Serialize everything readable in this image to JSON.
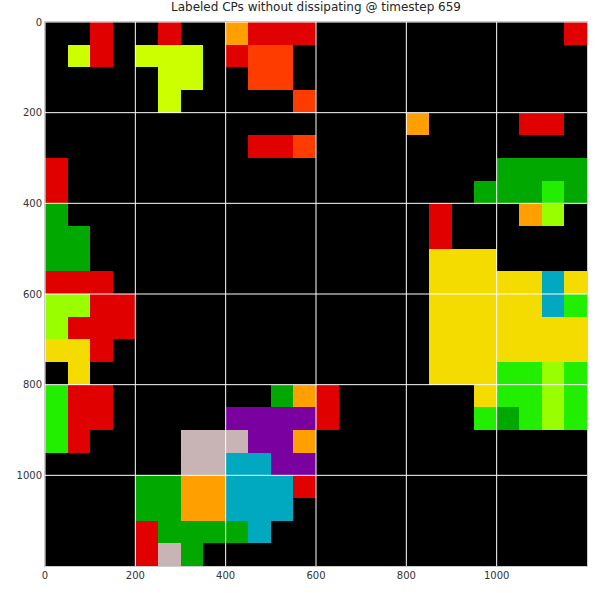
{
  "chart_data": {
    "type": "heatmap",
    "title": "Labeled CPs without dissipating @ timestep 659",
    "x": [
      25,
      75,
      125,
      175,
      225,
      275,
      325,
      375,
      425,
      475,
      525,
      575,
      625,
      675,
      725,
      775,
      825,
      875,
      925,
      975,
      1025,
      1075,
      1125,
      1175
    ],
    "y": [
      25,
      75,
      125,
      175,
      225,
      275,
      325,
      375,
      425,
      475,
      525,
      575,
      625,
      675,
      725,
      775,
      825,
      875,
      925,
      975,
      1025,
      1075,
      1125,
      1175
    ],
    "colors": [
      "#000000",
      "#e00000",
      "#ff3c00",
      "#ccff00",
      "#f5dc00",
      "#00a800",
      "#22ee00",
      "#7a00a0",
      "#00a8c0",
      "#ffa000",
      "#c8b4b4",
      "#99ff00"
    ],
    "cells": [
      [
        0,
        0,
        1,
        0,
        0,
        1,
        0,
        0,
        9,
        1,
        1,
        1,
        0,
        0,
        0,
        0,
        0,
        0,
        0,
        0,
        0,
        0,
        0,
        1
      ],
      [
        0,
        3,
        1,
        0,
        3,
        3,
        3,
        0,
        1,
        2,
        2,
        0,
        0,
        0,
        0,
        0,
        0,
        0,
        0,
        0,
        0,
        0,
        0,
        0
      ],
      [
        0,
        0,
        0,
        0,
        0,
        3,
        3,
        0,
        0,
        2,
        2,
        0,
        0,
        0,
        0,
        0,
        0,
        0,
        0,
        0,
        0,
        0,
        0,
        0
      ],
      [
        0,
        0,
        0,
        0,
        0,
        3,
        0,
        0,
        0,
        0,
        0,
        2,
        0,
        0,
        0,
        0,
        0,
        0,
        0,
        0,
        0,
        0,
        0,
        0
      ],
      [
        0,
        0,
        0,
        0,
        0,
        0,
        0,
        0,
        0,
        0,
        0,
        0,
        0,
        0,
        0,
        0,
        9,
        0,
        0,
        0,
        0,
        1,
        1,
        0
      ],
      [
        0,
        0,
        0,
        0,
        0,
        0,
        0,
        0,
        0,
        1,
        1,
        2,
        0,
        0,
        0,
        0,
        0,
        0,
        0,
        0,
        0,
        0,
        0,
        0
      ],
      [
        1,
        0,
        0,
        0,
        0,
        0,
        0,
        0,
        0,
        0,
        0,
        0,
        0,
        0,
        0,
        0,
        0,
        0,
        0,
        0,
        5,
        5,
        5,
        5
      ],
      [
        1,
        0,
        0,
        0,
        0,
        0,
        0,
        0,
        0,
        0,
        0,
        0,
        0,
        0,
        0,
        0,
        0,
        0,
        0,
        5,
        5,
        5,
        6,
        5
      ],
      [
        5,
        0,
        0,
        0,
        0,
        0,
        0,
        0,
        0,
        0,
        0,
        0,
        0,
        0,
        0,
        0,
        0,
        1,
        0,
        0,
        0,
        9,
        11,
        0
      ],
      [
        5,
        5,
        0,
        0,
        0,
        0,
        0,
        0,
        0,
        0,
        0,
        0,
        0,
        0,
        0,
        0,
        0,
        1,
        0,
        0,
        0,
        0,
        0,
        0
      ],
      [
        5,
        5,
        0,
        0,
        0,
        0,
        0,
        0,
        0,
        0,
        0,
        0,
        0,
        0,
        0,
        0,
        0,
        4,
        4,
        4,
        0,
        0,
        0,
        0
      ],
      [
        1,
        1,
        1,
        0,
        0,
        0,
        0,
        0,
        0,
        0,
        0,
        0,
        0,
        0,
        0,
        0,
        0,
        4,
        4,
        4,
        4,
        4,
        8,
        4
      ],
      [
        11,
        11,
        1,
        1,
        0,
        0,
        0,
        0,
        0,
        0,
        0,
        0,
        0,
        0,
        0,
        0,
        0,
        4,
        4,
        4,
        4,
        4,
        8,
        6
      ],
      [
        11,
        1,
        1,
        1,
        0,
        0,
        0,
        0,
        0,
        0,
        0,
        0,
        0,
        0,
        0,
        0,
        0,
        4,
        4,
        4,
        4,
        4,
        4,
        4
      ],
      [
        4,
        4,
        1,
        0,
        0,
        0,
        0,
        0,
        0,
        0,
        0,
        0,
        0,
        0,
        0,
        0,
        0,
        4,
        4,
        4,
        4,
        4,
        4,
        4
      ],
      [
        0,
        4,
        0,
        0,
        0,
        0,
        0,
        0,
        0,
        0,
        0,
        0,
        0,
        0,
        0,
        0,
        0,
        4,
        4,
        4,
        6,
        6,
        11,
        6
      ],
      [
        6,
        1,
        1,
        0,
        0,
        0,
        0,
        0,
        0,
        0,
        5,
        9,
        1,
        0,
        0,
        0,
        0,
        0,
        0,
        4,
        6,
        6,
        11,
        6
      ],
      [
        6,
        1,
        1,
        0,
        0,
        0,
        0,
        0,
        7,
        7,
        7,
        7,
        1,
        0,
        0,
        0,
        0,
        0,
        0,
        6,
        5,
        6,
        11,
        6
      ],
      [
        6,
        1,
        0,
        0,
        0,
        0,
        10,
        10,
        10,
        7,
        7,
        9,
        0,
        0,
        0,
        0,
        0,
        0,
        0,
        0,
        0,
        0,
        0,
        0
      ],
      [
        0,
        0,
        0,
        0,
        0,
        0,
        10,
        10,
        8,
        8,
        7,
        7,
        0,
        0,
        0,
        0,
        0,
        0,
        0,
        0,
        0,
        0,
        0,
        0
      ],
      [
        0,
        0,
        0,
        0,
        5,
        5,
        9,
        9,
        8,
        8,
        8,
        1,
        0,
        0,
        0,
        0,
        0,
        0,
        0,
        0,
        0,
        0,
        0,
        0
      ],
      [
        0,
        0,
        0,
        0,
        5,
        5,
        9,
        9,
        8,
        8,
        8,
        0,
        0,
        0,
        0,
        0,
        0,
        0,
        0,
        0,
        0,
        0,
        0,
        0
      ],
      [
        0,
        0,
        0,
        0,
        1,
        5,
        5,
        5,
        5,
        8,
        0,
        0,
        0,
        0,
        0,
        0,
        0,
        0,
        0,
        0,
        0,
        0,
        0,
        0
      ],
      [
        0,
        0,
        0,
        0,
        1,
        10,
        5,
        0,
        0,
        0,
        0,
        0,
        0,
        0,
        0,
        0,
        0,
        0,
        0,
        0,
        0,
        0,
        0,
        0
      ]
    ],
    "xlim": [
      0,
      1200
    ],
    "ylim": [
      1200,
      0
    ],
    "xticks": [
      0,
      200,
      400,
      600,
      800,
      1000
    ],
    "yticks": [
      0,
      200,
      400,
      600,
      800,
      1000
    ],
    "grid": true
  }
}
